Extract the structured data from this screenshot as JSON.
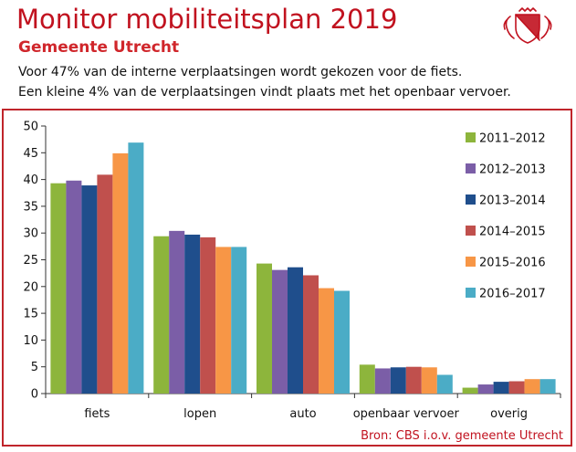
{
  "header": {
    "title": "Monitor mobiliteitsplan 2019",
    "subtitle": "Gemeente Utrecht",
    "description_line1": "Voor 47% van de interne verplaatsingen wordt gekozen voor de fiets.",
    "description_line2": "Een kleine 4% van de verplaatsingen vindt plaats met het openbaar vervoer."
  },
  "source": "Bron: CBS i.o.v. gemeente Utrecht",
  "logo": {
    "icon": "utrecht-coat-of-arms-icon",
    "color": "#c1121f"
  },
  "colors": {
    "accent": "#c1121f",
    "series": [
      "#8db53c",
      "#7b5ea7",
      "#1f4e8c",
      "#c0504d",
      "#f79646",
      "#4bacc6"
    ]
  },
  "chart_data": {
    "type": "bar",
    "categories": [
      "fiets",
      "lopen",
      "auto",
      "openbaar vervoer",
      "overig"
    ],
    "series": [
      {
        "name": "2011–2012",
        "values": [
          39.3,
          29.4,
          24.3,
          5.4,
          1.1
        ]
      },
      {
        "name": "2012–2013",
        "values": [
          39.8,
          30.4,
          23.1,
          4.7,
          1.7
        ]
      },
      {
        "name": "2013–2014",
        "values": [
          38.9,
          29.7,
          23.6,
          4.9,
          2.2
        ]
      },
      {
        "name": "2014–2015",
        "values": [
          40.9,
          29.2,
          22.1,
          5.0,
          2.3
        ]
      },
      {
        "name": "2015–2016",
        "values": [
          44.9,
          27.4,
          19.7,
          4.9,
          2.7
        ]
      },
      {
        "name": "2016–2017",
        "values": [
          46.9,
          27.4,
          19.2,
          3.5,
          2.7
        ]
      }
    ],
    "ylim": [
      0,
      50
    ],
    "yticks": [
      0,
      5,
      10,
      15,
      20,
      25,
      30,
      35,
      40,
      45,
      50
    ],
    "grid": false,
    "legend_position": "right"
  }
}
